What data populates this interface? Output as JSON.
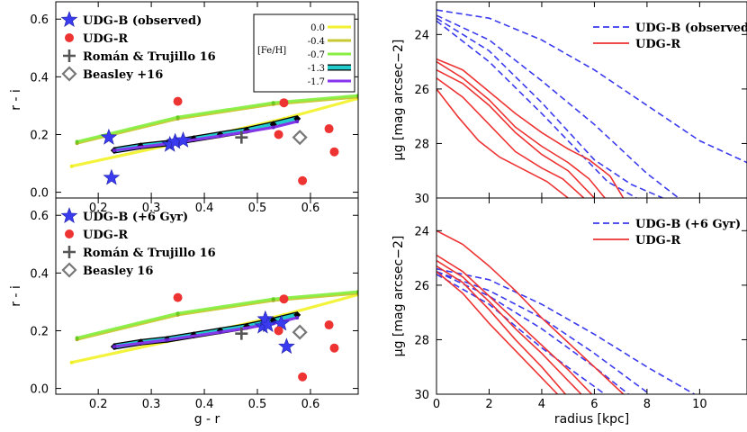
{
  "colors": {
    "udg_b": "#3a3aee",
    "udg_r": "#ee3333",
    "roman": "#555555",
    "beasley": "#777777",
    "feh_0": "#f2f232",
    "feh_04": "#c8c832",
    "feh_07": "#88ee44",
    "feh_13": "#22cccc",
    "feh_17": "#8833ee"
  },
  "chart_data": [
    {
      "type": "scatter",
      "id": "color-top",
      "xlabel": "",
      "ylabel": "r - i",
      "xlim": [
        0.12,
        0.69
      ],
      "ylim": [
        -0.02,
        0.66
      ],
      "xticks": [
        "0.2",
        "0.3",
        "0.4",
        "0.5",
        "0.6"
      ],
      "xtick_values": [
        0.2,
        0.3,
        0.4,
        0.5,
        0.6
      ],
      "yticks": [
        "0.0",
        "0.2",
        "0.4",
        "0.6"
      ],
      "ytick_values": [
        0.0,
        0.2,
        0.4,
        0.6
      ],
      "legend": [
        {
          "label": "UDG-B (observed)",
          "marker": "star"
        },
        {
          "label": "UDG-R",
          "marker": "circle"
        },
        {
          "label": "Román & Trujillo 16",
          "marker": "plus"
        },
        {
          "label": "Beasley +16",
          "marker": "diamond"
        }
      ],
      "feh_legend": {
        "title": "[Fe/H]",
        "labels": [
          "0.0",
          "-0.4",
          "-0.7",
          "-1.3",
          "-1.7"
        ]
      },
      "series": [
        {
          "name": "UDG-B",
          "marker": "star",
          "x": [
            0.22,
            0.225,
            0.335,
            0.345,
            0.36
          ],
          "y": [
            0.19,
            0.05,
            0.165,
            0.175,
            0.18
          ]
        },
        {
          "name": "UDG-R",
          "marker": "circle",
          "x": [
            0.35,
            0.54,
            0.55,
            0.585,
            0.635,
            0.645
          ],
          "y": [
            0.315,
            0.2,
            0.31,
            0.04,
            0.22,
            0.14
          ]
        },
        {
          "name": "Román & Trujillo 16",
          "marker": "plus",
          "x": [
            0.47
          ],
          "y": [
            0.19
          ]
        },
        {
          "name": "Beasley",
          "marker": "diamond",
          "x": [
            0.58
          ],
          "y": [
            0.19
          ]
        }
      ],
      "tracks": [
        {
          "name": "0.0",
          "x": [
            0.15,
            0.35,
            0.55,
            0.69
          ],
          "y": [
            0.09,
            0.17,
            0.255,
            0.325
          ]
        },
        {
          "name": "-0.4",
          "x": [
            0.16,
            0.35,
            0.53,
            0.69
          ],
          "y": [
            0.17,
            0.255,
            0.305,
            0.33
          ]
        },
        {
          "name": "-0.7",
          "x": [
            0.16,
            0.35,
            0.53,
            0.69
          ],
          "y": [
            0.175,
            0.26,
            0.31,
            0.335
          ]
        },
        {
          "name": "-1.3",
          "x": [
            0.23,
            0.28,
            0.33,
            0.38,
            0.43,
            0.48,
            0.53,
            0.575
          ],
          "y": [
            0.145,
            0.16,
            0.17,
            0.185,
            0.2,
            0.215,
            0.235,
            0.255
          ]
        },
        {
          "name": "-1.7",
          "x": [
            0.23,
            0.33,
            0.43,
            0.53,
            0.575
          ],
          "y": [
            0.145,
            0.168,
            0.195,
            0.225,
            0.245
          ]
        }
      ]
    },
    {
      "type": "scatter",
      "id": "color-bottom",
      "xlabel": "g - r",
      "ylabel": "r - i",
      "xlim": [
        0.12,
        0.69
      ],
      "ylim": [
        -0.02,
        0.66
      ],
      "xticks": [
        "0.2",
        "0.3",
        "0.4",
        "0.5",
        "0.6"
      ],
      "xtick_values": [
        0.2,
        0.3,
        0.4,
        0.5,
        0.6
      ],
      "yticks": [
        "0.0",
        "0.2",
        "0.4",
        "0.6"
      ],
      "ytick_values": [
        0.0,
        0.2,
        0.4,
        0.6
      ],
      "legend": [
        {
          "label": "UDG-B (+6 Gyr)",
          "marker": "star"
        },
        {
          "label": "UDG-R",
          "marker": "circle"
        },
        {
          "label": "Román & Trujillo 16",
          "marker": "plus"
        },
        {
          "label": "Beasley 16",
          "marker": "diamond"
        }
      ],
      "series": [
        {
          "name": "UDG-B",
          "marker": "star",
          "x": [
            0.51,
            0.515,
            0.52,
            0.545,
            0.555
          ],
          "y": [
            0.215,
            0.24,
            0.22,
            0.225,
            0.145
          ]
        },
        {
          "name": "UDG-R",
          "marker": "circle",
          "x": [
            0.35,
            0.54,
            0.55,
            0.585,
            0.635,
            0.645
          ],
          "y": [
            0.315,
            0.2,
            0.31,
            0.04,
            0.22,
            0.14
          ]
        },
        {
          "name": "Román & Trujillo 16",
          "marker": "plus",
          "x": [
            0.47
          ],
          "y": [
            0.19
          ]
        },
        {
          "name": "Beasley",
          "marker": "diamond",
          "x": [
            0.58
          ],
          "y": [
            0.195
          ]
        }
      ],
      "tracks": [
        {
          "name": "0.0",
          "x": [
            0.15,
            0.35,
            0.55,
            0.69
          ],
          "y": [
            0.09,
            0.17,
            0.255,
            0.325
          ]
        },
        {
          "name": "-0.4",
          "x": [
            0.16,
            0.35,
            0.53,
            0.69
          ],
          "y": [
            0.17,
            0.255,
            0.305,
            0.33
          ]
        },
        {
          "name": "-0.7",
          "x": [
            0.16,
            0.35,
            0.53,
            0.69
          ],
          "y": [
            0.175,
            0.26,
            0.31,
            0.335
          ]
        },
        {
          "name": "-1.3",
          "x": [
            0.23,
            0.28,
            0.33,
            0.38,
            0.43,
            0.48,
            0.53,
            0.575
          ],
          "y": [
            0.145,
            0.16,
            0.17,
            0.185,
            0.2,
            0.215,
            0.235,
            0.255
          ]
        },
        {
          "name": "-1.7",
          "x": [
            0.23,
            0.33,
            0.43,
            0.53,
            0.575
          ],
          "y": [
            0.145,
            0.168,
            0.195,
            0.225,
            0.245
          ]
        }
      ]
    },
    {
      "type": "line",
      "id": "profile-top",
      "xlabel": "",
      "ylabel": "μg [mag arcsec−2]",
      "xlim": [
        0,
        11.8
      ],
      "ylim": [
        30,
        22.8
      ],
      "xticks": [],
      "xtick_values": [
        0,
        2,
        4,
        6,
        8,
        10
      ],
      "yticks": [
        "24",
        "26",
        "28",
        "30"
      ],
      "ytick_values": [
        24,
        26,
        28,
        30
      ],
      "legend": [
        {
          "label": "UDG-B (observed)",
          "style": "dashed"
        },
        {
          "label": "UDG-R",
          "style": "solid"
        }
      ],
      "series": [
        {
          "name": "UDG-B",
          "style": "dashed",
          "x": [
            0,
            2,
            4,
            6,
            8,
            10,
            11.8
          ],
          "y": [
            23.1,
            23.4,
            24.2,
            25.3,
            26.6,
            27.9,
            28.7
          ]
        },
        {
          "name": "UDG-B",
          "style": "dashed",
          "x": [
            0,
            2,
            4,
            6,
            8,
            9.2
          ],
          "y": [
            23.3,
            24.2,
            25.7,
            27.3,
            29.1,
            30
          ]
        },
        {
          "name": "UDG-B",
          "style": "dashed",
          "x": [
            0,
            2,
            4,
            6,
            7.4,
            8.6
          ],
          "y": [
            23.4,
            24.6,
            26.5,
            28.6,
            29.5,
            30
          ]
        },
        {
          "name": "UDG-B",
          "style": "dashed",
          "x": [
            0,
            2,
            4,
            5.5,
            6.5,
            7.6
          ],
          "y": [
            23.5,
            25.0,
            26.9,
            28.4,
            29.4,
            30
          ]
        },
        {
          "name": "UDG-R",
          "style": "solid",
          "x": [
            0,
            1,
            2,
            3,
            4,
            5,
            5.8,
            6.6,
            7.1
          ],
          "y": [
            24.9,
            25.3,
            26.1,
            26.9,
            27.6,
            28.2,
            28.6,
            29.2,
            30
          ]
        },
        {
          "name": "UDG-R",
          "style": "solid",
          "x": [
            0,
            1,
            2,
            3,
            4,
            5,
            5.8,
            6.4
          ],
          "y": [
            25.0,
            25.6,
            26.4,
            27.4,
            28.1,
            28.7,
            29.3,
            30
          ]
        },
        {
          "name": "UDG-R",
          "style": "solid",
          "x": [
            0,
            1,
            2,
            3,
            4,
            5,
            5.5,
            6.0
          ],
          "y": [
            25.3,
            25.8,
            26.6,
            27.6,
            28.4,
            29.0,
            29.5,
            30
          ]
        },
        {
          "name": "UDG-R",
          "style": "solid",
          "x": [
            0,
            1,
            2,
            3,
            4,
            4.8,
            5.6
          ],
          "y": [
            25.6,
            26.3,
            27.3,
            28.3,
            28.9,
            29.3,
            30
          ]
        },
        {
          "name": "UDG-R",
          "style": "solid",
          "x": [
            0,
            0.8,
            1.6,
            2.4,
            3.2,
            4.2,
            5.0
          ],
          "y": [
            26.0,
            27.0,
            27.9,
            28.5,
            28.9,
            29.4,
            30
          ]
        }
      ]
    },
    {
      "type": "line",
      "id": "profile-bottom",
      "xlabel": "radius [kpc]",
      "ylabel": "μg [mag arcsec−2]",
      "xlim": [
        0,
        11.8
      ],
      "ylim": [
        30,
        22.8
      ],
      "xticks": [
        "0",
        "2",
        "4",
        "6",
        "8",
        "10"
      ],
      "xtick_values": [
        0,
        2,
        4,
        6,
        8,
        10
      ],
      "yticks": [
        "24",
        "26",
        "28",
        "30"
      ],
      "ytick_values": [
        24,
        26,
        28,
        30
      ],
      "legend": [
        {
          "label": "UDG-B (+6 Gyr)",
          "style": "dashed"
        },
        {
          "label": "UDG-R",
          "style": "solid"
        }
      ],
      "series": [
        {
          "name": "UDG-B",
          "style": "dashed",
          "x": [
            0,
            2,
            4,
            6,
            8,
            9.8
          ],
          "y": [
            25.4,
            25.8,
            26.7,
            27.8,
            29.0,
            30
          ]
        },
        {
          "name": "UDG-B",
          "style": "dashed",
          "x": [
            0,
            2,
            4,
            6,
            8.1
          ],
          "y": [
            25.5,
            26.2,
            27.2,
            28.5,
            30
          ]
        },
        {
          "name": "UDG-B",
          "style": "dashed",
          "x": [
            0,
            2,
            4,
            6,
            7.3
          ],
          "y": [
            25.5,
            26.4,
            27.6,
            29.0,
            30
          ]
        },
        {
          "name": "UDG-B",
          "style": "dashed",
          "x": [
            0,
            2,
            4,
            5.4,
            6.4
          ],
          "y": [
            25.6,
            26.7,
            28.3,
            29.3,
            30
          ]
        },
        {
          "name": "UDG-R",
          "style": "solid",
          "x": [
            0,
            1,
            2,
            3,
            4,
            5,
            6,
            7.1
          ],
          "y": [
            24.0,
            24.5,
            25.3,
            26.2,
            27.2,
            28.1,
            29.0,
            30
          ]
        },
        {
          "name": "UDG-R",
          "style": "solid",
          "x": [
            0,
            1,
            2,
            3,
            4,
            5,
            5.9
          ],
          "y": [
            24.9,
            25.5,
            26.4,
            27.3,
            28.2,
            29.1,
            30
          ]
        },
        {
          "name": "UDG-R",
          "style": "solid",
          "x": [
            0,
            1,
            2,
            3,
            4,
            5,
            5.5
          ],
          "y": [
            25.1,
            25.7,
            26.6,
            27.6,
            28.5,
            29.5,
            30
          ]
        },
        {
          "name": "UDG-R",
          "style": "solid",
          "x": [
            0,
            1,
            2,
            3,
            4,
            4.9
          ],
          "y": [
            25.3,
            25.9,
            26.9,
            28.0,
            29.0,
            30
          ]
        },
        {
          "name": "UDG-R",
          "style": "solid",
          "x": [
            0,
            1,
            2,
            3,
            4,
            4.6
          ],
          "y": [
            25.5,
            26.3,
            27.4,
            28.4,
            29.4,
            30
          ]
        }
      ]
    }
  ]
}
